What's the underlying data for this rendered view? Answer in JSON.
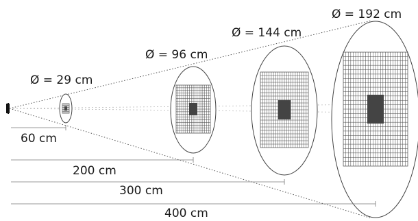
{
  "diameters": [
    {
      "label": "Ø = 29 cm"
    },
    {
      "label": "Ø = 96 cm"
    },
    {
      "label": "Ø = 144 cm"
    },
    {
      "label": "Ø = 192 cm"
    }
  ],
  "distances": [
    {
      "label": "60 cm"
    },
    {
      "label": "200 cm"
    },
    {
      "label": "300 cm"
    },
    {
      "label": "400 cm"
    }
  ],
  "colors": {
    "stroke": "#444444",
    "rule": "#777777",
    "text": "#1a1a1a"
  }
}
